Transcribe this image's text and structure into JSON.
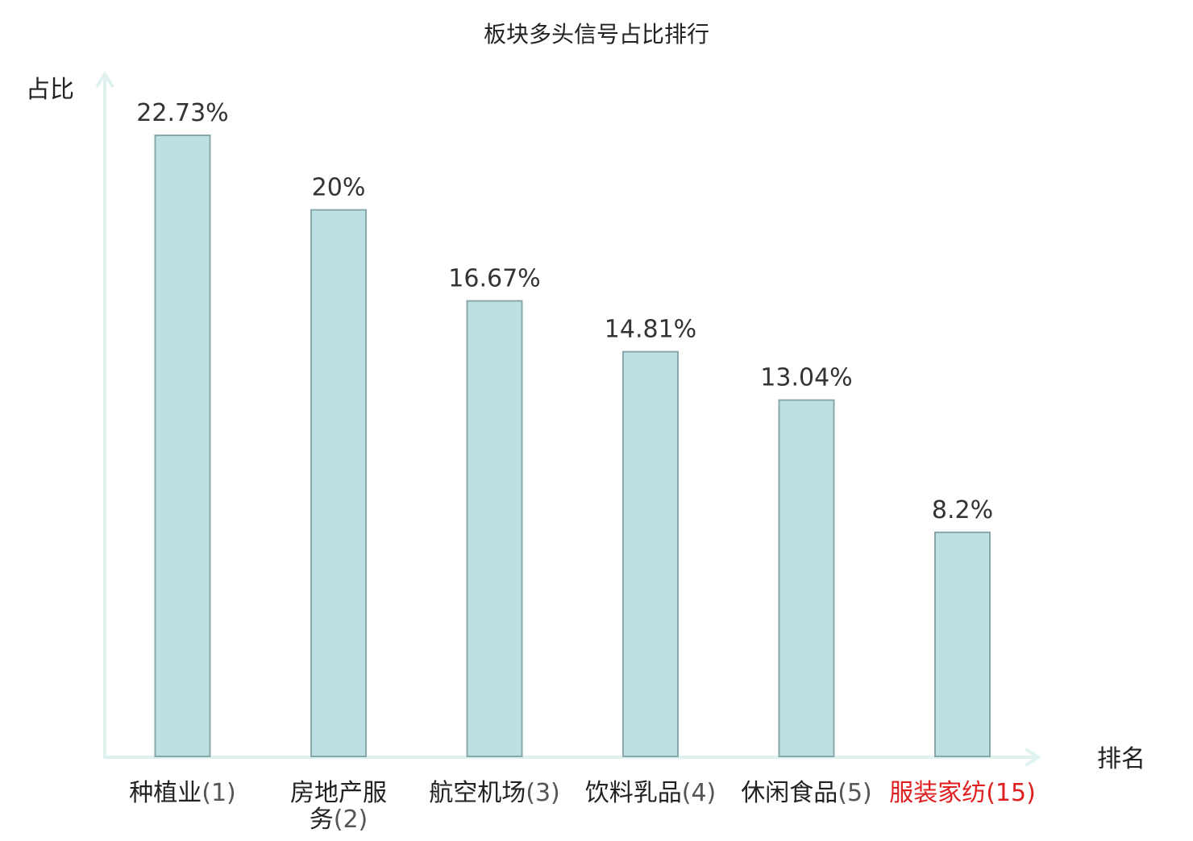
{
  "chart_data": {
    "type": "bar",
    "title": "板块多头信号占比排行",
    "ylabel": "占比",
    "xlabel": "排名",
    "categories": [
      {
        "name": "种植业",
        "rank": "(1)",
        "highlight": false
      },
      {
        "name": "房地产服务",
        "rank": "(2)",
        "highlight": false
      },
      {
        "name": "航空机场",
        "rank": "(3)",
        "highlight": false
      },
      {
        "name": "饮料乳品",
        "rank": "(4)",
        "highlight": false
      },
      {
        "name": "休闲食品",
        "rank": "(5)",
        "highlight": false
      },
      {
        "name": "服装家纺",
        "rank": "(15)",
        "highlight": true
      }
    ],
    "values": [
      22.73,
      20,
      16.67,
      14.81,
      13.04,
      8.2
    ],
    "value_labels": [
      "22.73%",
      "20%",
      "16.67%",
      "14.81%",
      "13.04%",
      "8.2%"
    ],
    "ylim": [
      0,
      25
    ],
    "grid": false,
    "legend": "none"
  },
  "colors": {
    "bar_fill": "#bde0e3",
    "bar_stroke": "#86a8ab",
    "axis": "#e0f2f0",
    "label_text": "#333333",
    "category_text": "#222222",
    "highlight_text": "#e02020",
    "title_text": "#222222"
  }
}
